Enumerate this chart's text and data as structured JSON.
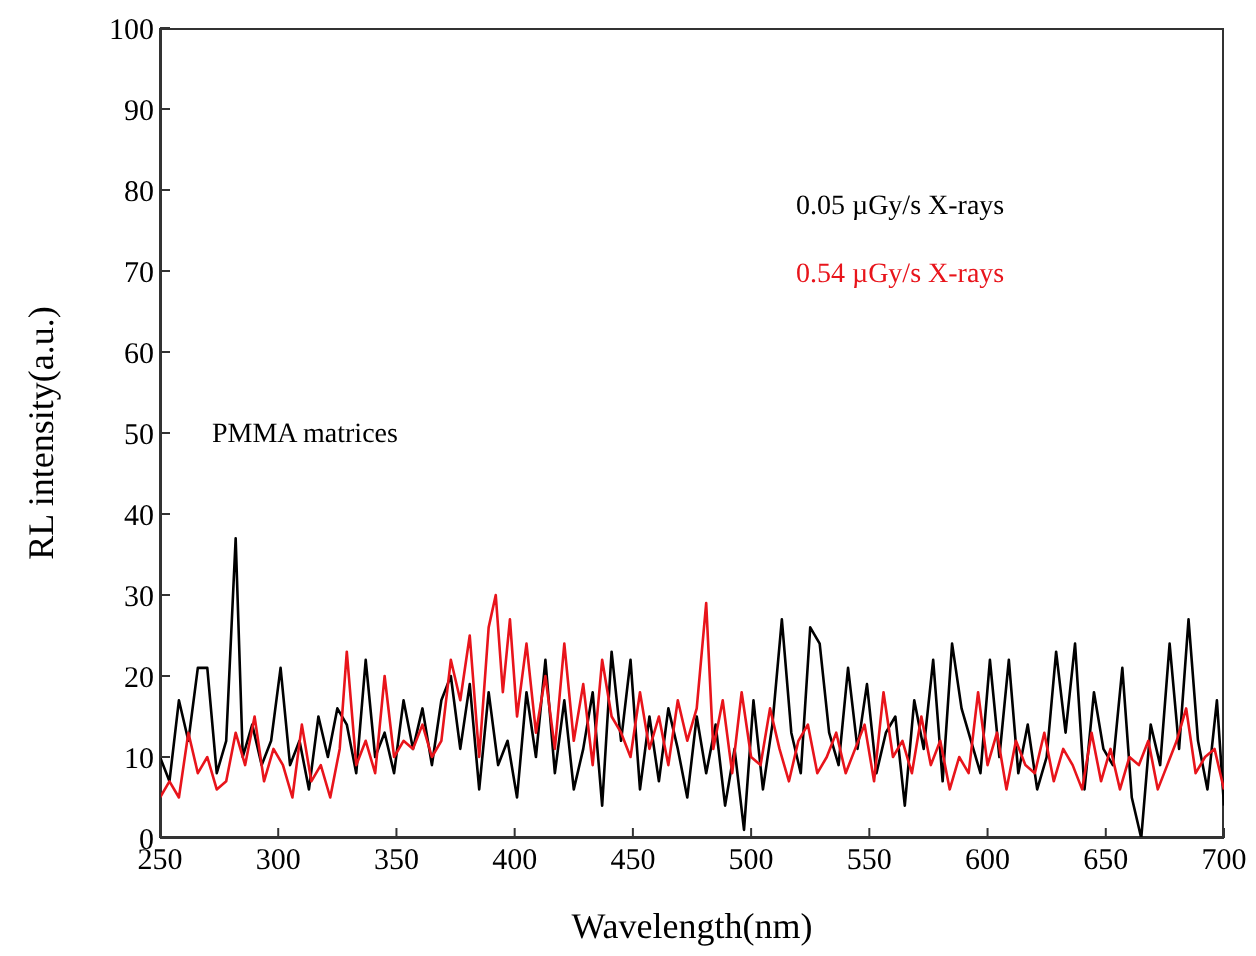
{
  "chart_data": {
    "type": "line",
    "xlabel": "Wavelength(nm)",
    "ylabel": "RL intensity(a.u.)",
    "xlim": [
      250,
      700
    ],
    "ylim": [
      0,
      100
    ],
    "xticks": [
      250,
      300,
      350,
      400,
      450,
      500,
      550,
      600,
      650,
      700
    ],
    "yticks": [
      0,
      10,
      20,
      30,
      40,
      50,
      60,
      70,
      80,
      90,
      100
    ],
    "legend": "top right",
    "marker": "none",
    "line_style": "solid",
    "annotations": [
      "PMMA matrices"
    ],
    "series": [
      {
        "name": "0.05 µGy/s X-rays",
        "color": "#000000",
        "x": [
          250,
          254,
          258,
          262,
          266,
          270,
          274,
          278,
          282,
          285,
          289,
          293,
          297,
          301,
          305,
          309,
          313,
          317,
          321,
          325,
          329,
          333,
          337,
          341,
          345,
          349,
          353,
          357,
          361,
          365,
          369,
          373,
          377,
          381,
          385,
          389,
          393,
          397,
          401,
          405,
          409,
          413,
          417,
          421,
          425,
          429,
          433,
          437,
          441,
          445,
          449,
          453,
          457,
          461,
          465,
          469,
          473,
          477,
          481,
          485,
          489,
          493,
          497,
          501,
          505,
          509,
          513,
          517,
          521,
          525,
          529,
          533,
          537,
          541,
          545,
          549,
          553,
          557,
          561,
          565,
          569,
          573,
          577,
          581,
          585,
          589,
          593,
          597,
          601,
          605,
          609,
          613,
          617,
          621,
          625,
          629,
          633,
          637,
          641,
          645,
          649,
          653,
          657,
          661,
          665,
          669,
          673,
          677,
          681,
          685,
          689,
          693,
          697,
          700
        ],
        "values": [
          10,
          7,
          17,
          12,
          21,
          21,
          8,
          12,
          37,
          10,
          14,
          9,
          12,
          21,
          9,
          12,
          6,
          15,
          10,
          16,
          14,
          8,
          22,
          10,
          13,
          8,
          17,
          11,
          16,
          9,
          17,
          20,
          11,
          19,
          6,
          18,
          9,
          12,
          5,
          18,
          10,
          22,
          8,
          17,
          6,
          11,
          18,
          4,
          23,
          12,
          22,
          6,
          15,
          7,
          16,
          11,
          5,
          15,
          8,
          14,
          4,
          11,
          1,
          17,
          6,
          14,
          27,
          13,
          8,
          26,
          24,
          13,
          9,
          21,
          11,
          19,
          8,
          13,
          15,
          4,
          17,
          11,
          22,
          7,
          24,
          16,
          12,
          8,
          22,
          10,
          22,
          8,
          14,
          6,
          10,
          23,
          13,
          24,
          6,
          18,
          11,
          9,
          21,
          5,
          0,
          14,
          9,
          24,
          11,
          27,
          12,
          6,
          17,
          4
        ]
      },
      {
        "name": "0.54 µGy/s X-rays",
        "color": "#e8141b",
        "x": [
          250,
          254,
          258,
          262,
          266,
          270,
          274,
          278,
          282,
          286,
          290,
          294,
          298,
          302,
          306,
          310,
          314,
          318,
          322,
          326,
          329,
          333,
          337,
          341,
          345,
          349,
          353,
          357,
          361,
          365,
          369,
          373,
          377,
          381,
          385,
          389,
          392,
          395,
          398,
          401,
          405,
          409,
          413,
          417,
          421,
          425,
          429,
          433,
          437,
          441,
          445,
          449,
          453,
          457,
          461,
          465,
          469,
          473,
          477,
          481,
          484,
          488,
          492,
          496,
          500,
          504,
          508,
          512,
          516,
          520,
          524,
          528,
          532,
          536,
          540,
          544,
          548,
          552,
          556,
          560,
          564,
          568,
          572,
          576,
          580,
          584,
          588,
          592,
          596,
          600,
          604,
          608,
          612,
          616,
          620,
          624,
          628,
          632,
          636,
          640,
          644,
          648,
          652,
          656,
          660,
          664,
          668,
          672,
          676,
          680,
          684,
          688,
          692,
          696,
          700
        ],
        "values": [
          5,
          7,
          5,
          13,
          8,
          10,
          6,
          7,
          13,
          9,
          15,
          7,
          11,
          9,
          5,
          14,
          7,
          9,
          5,
          11,
          23,
          9,
          12,
          8,
          20,
          10,
          12,
          11,
          14,
          10,
          12,
          22,
          17,
          25,
          10,
          26,
          30,
          18,
          27,
          15,
          24,
          13,
          20,
          11,
          24,
          12,
          19,
          9,
          22,
          15,
          13,
          10,
          18,
          11,
          15,
          9,
          17,
          12,
          16,
          29,
          11,
          17,
          8,
          18,
          10,
          9,
          16,
          11,
          7,
          12,
          14,
          8,
          10,
          13,
          8,
          11,
          14,
          7,
          18,
          10,
          12,
          8,
          15,
          9,
          12,
          6,
          10,
          8,
          18,
          9,
          13,
          6,
          12,
          9,
          8,
          13,
          7,
          11,
          9,
          6,
          13,
          7,
          11,
          6,
          10,
          9,
          12,
          6,
          9,
          12,
          16,
          8,
          10,
          11,
          6
        ]
      }
    ]
  }
}
